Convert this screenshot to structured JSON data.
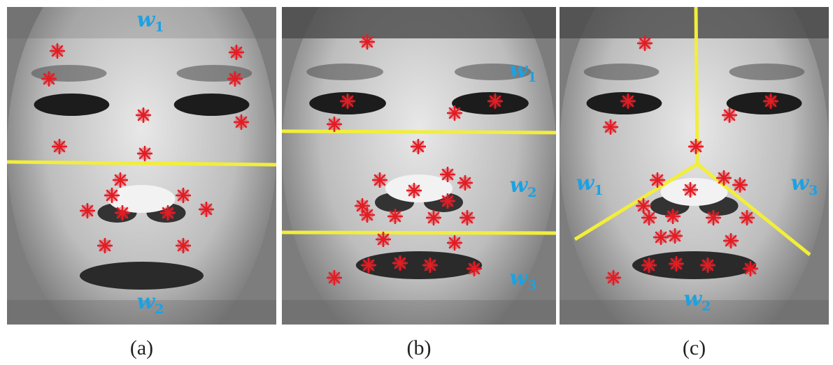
{
  "panels": [
    {
      "caption": "(a)",
      "regions": [
        {
          "label": "w",
          "index": "1"
        },
        {
          "label": "w",
          "index": "2"
        }
      ]
    },
    {
      "caption": "(b)",
      "regions": [
        {
          "label": "w",
          "index": "1"
        },
        {
          "label": "w",
          "index": "2"
        },
        {
          "label": "w",
          "index": "3"
        }
      ]
    },
    {
      "caption": "(c)",
      "regions": [
        {
          "label": "w",
          "index": "1"
        },
        {
          "label": "w",
          "index": "2"
        },
        {
          "label": "w",
          "index": "3"
        }
      ]
    }
  ]
}
